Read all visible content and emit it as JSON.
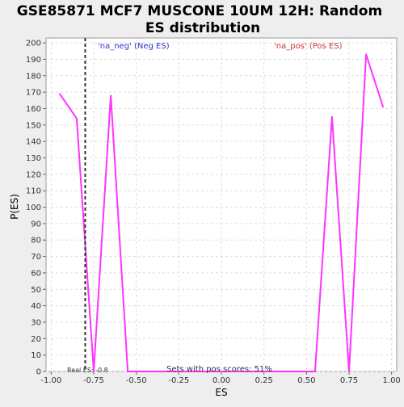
{
  "chart_data": {
    "type": "line",
    "title_line1": "GSE85871 MCF7 MUSCONE 10UM 12H: Random",
    "title_line2": "ES distribution",
    "xlabel": "ES",
    "ylabel": "P(ES)",
    "xlim": [
      -1.03,
      1.03
    ],
    "ylim": [
      0,
      203
    ],
    "x_ticks": [
      -1.0,
      -0.75,
      -0.5,
      -0.25,
      0.0,
      0.25,
      0.5,
      0.75,
      1.0
    ],
    "x_tick_labels": [
      "-1.00",
      "-0.75",
      "-0.50",
      "-0.25",
      "0.00",
      "0.25",
      "0.50",
      "0.75",
      "1.00"
    ],
    "y_ticks": [
      0,
      10,
      20,
      30,
      40,
      50,
      60,
      70,
      80,
      90,
      100,
      110,
      120,
      130,
      140,
      150,
      160,
      170,
      180,
      190,
      200
    ],
    "grid": true,
    "legend": [
      {
        "label": "'na_neg' (Neg ES)",
        "color": "#3333cc",
        "placement": "top-left"
      },
      {
        "label": "'na_pos' (Pos ES)",
        "color": "#cc3333",
        "placement": "top-right"
      }
    ],
    "series": [
      {
        "color": "#ff33ff",
        "x": [
          -0.95,
          -0.85,
          -0.75,
          -0.65,
          -0.55,
          -0.45,
          0.45,
          0.55,
          0.65,
          0.75,
          0.85,
          0.95
        ],
        "y": [
          169,
          154,
          0,
          168,
          0,
          0,
          0,
          0,
          155,
          0,
          193,
          161
        ]
      }
    ],
    "reference_line": {
      "x": -0.8,
      "label": "Real ES: -0.8",
      "color": "#333333"
    },
    "annotation": "Sets with pos scores: 51%"
  }
}
